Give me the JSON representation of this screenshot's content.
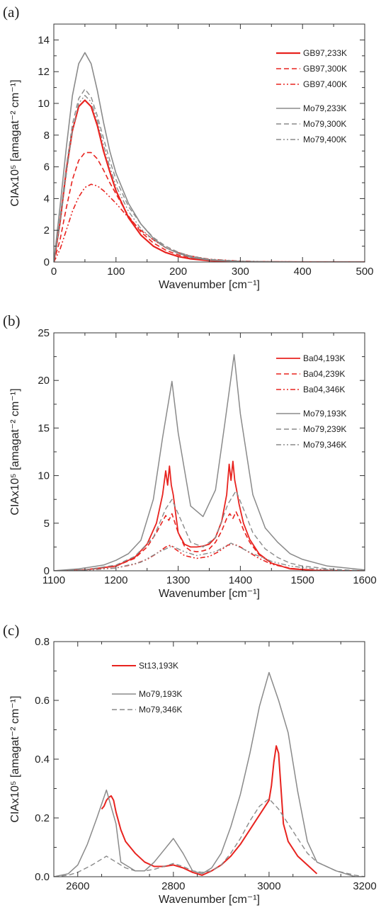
{
  "chart_data": [
    {
      "type": "line",
      "panel_label": "(a)",
      "xlabel": "Wavenumber [cm⁻¹]",
      "ylabel": "CIAx10⁵ [amagat⁻² cm⁻¹]",
      "xlim": [
        0,
        500
      ],
      "ylim": [
        0,
        15
      ],
      "xticks": [
        0,
        100,
        200,
        300,
        400,
        500
      ],
      "yticks": [
        0,
        2,
        4,
        6,
        8,
        10,
        12,
        14
      ],
      "legend_position": "top-right",
      "grid": false,
      "series": [
        {
          "name": "GB97,233K",
          "color": "#e8231f",
          "style": "solid",
          "width": 2.2,
          "x": [
            0,
            10,
            20,
            30,
            40,
            50,
            60,
            70,
            80,
            90,
            100,
            120,
            140,
            160,
            180,
            200,
            220,
            250,
            300,
            350,
            400,
            500
          ],
          "y": [
            0,
            2.5,
            5.8,
            8.3,
            9.8,
            10.2,
            9.8,
            8.6,
            7.0,
            5.7,
            4.5,
            2.8,
            1.7,
            1.0,
            0.6,
            0.35,
            0.2,
            0.08,
            0.02,
            0.01,
            0,
            0
          ]
        },
        {
          "name": "GB97,300K",
          "color": "#e8231f",
          "style": "dashed",
          "width": 1.6,
          "x": [
            0,
            10,
            20,
            30,
            40,
            50,
            60,
            70,
            80,
            90,
            100,
            120,
            140,
            160,
            180,
            200,
            220,
            250,
            300,
            350,
            400,
            500
          ],
          "y": [
            0,
            1.4,
            3.4,
            5.2,
            6.4,
            6.9,
            6.9,
            6.5,
            5.8,
            5.0,
            4.3,
            2.9,
            1.9,
            1.2,
            0.75,
            0.45,
            0.28,
            0.12,
            0.04,
            0.01,
            0,
            0
          ]
        },
        {
          "name": "GB97,400K",
          "color": "#e8231f",
          "style": "dashdotdot",
          "width": 1.6,
          "x": [
            0,
            10,
            20,
            30,
            40,
            50,
            60,
            70,
            80,
            90,
            100,
            120,
            140,
            160,
            180,
            200,
            220,
            250,
            300,
            350,
            400,
            500
          ],
          "y": [
            0,
            0.8,
            2.0,
            3.2,
            4.1,
            4.7,
            4.9,
            4.8,
            4.5,
            4.1,
            3.7,
            2.8,
            2.0,
            1.4,
            0.9,
            0.6,
            0.38,
            0.18,
            0.06,
            0.02,
            0.01,
            0
          ]
        },
        {
          "name": "Mo79,233K",
          "color": "#8a8a8a",
          "style": "solid",
          "width": 1.6,
          "x": [
            0,
            10,
            20,
            30,
            40,
            50,
            60,
            70,
            80,
            90,
            100,
            120,
            140,
            160,
            180,
            200,
            220,
            250,
            300,
            350,
            400,
            500
          ],
          "y": [
            0,
            3.5,
            7.2,
            10.5,
            12.5,
            13.2,
            12.5,
            10.8,
            8.8,
            7.0,
            5.6,
            3.7,
            2.4,
            1.5,
            0.9,
            0.55,
            0.3,
            0.12,
            0.03,
            0.01,
            0,
            0
          ]
        },
        {
          "name": "Mo79,300K",
          "color": "#8a8a8a",
          "style": "dashed",
          "width": 1.4,
          "x": [
            0,
            10,
            20,
            30,
            40,
            50,
            60,
            70,
            80,
            90,
            100,
            120,
            140,
            160,
            180,
            200,
            220,
            250,
            300,
            350,
            400,
            500
          ],
          "y": [
            0,
            2.8,
            6.0,
            8.7,
            10.3,
            10.9,
            10.4,
            9.2,
            7.8,
            6.4,
            5.2,
            3.5,
            2.4,
            1.55,
            1.0,
            0.62,
            0.38,
            0.17,
            0.05,
            0.02,
            0,
            0
          ]
        },
        {
          "name": "Mo79,400K",
          "color": "#8a8a8a",
          "style": "dashdotdot",
          "width": 1.4,
          "x": [
            0,
            10,
            20,
            30,
            40,
            50,
            60,
            70,
            80,
            90,
            100,
            120,
            140,
            160,
            180,
            200,
            220,
            250,
            300,
            350,
            400,
            500
          ],
          "y": [
            0,
            2.4,
            5.5,
            8.3,
            10.0,
            10.5,
            10.1,
            8.9,
            7.4,
            6.0,
            4.8,
            3.2,
            2.1,
            1.4,
            0.9,
            0.58,
            0.36,
            0.16,
            0.05,
            0.02,
            0,
            0
          ]
        }
      ]
    },
    {
      "type": "line",
      "panel_label": "(b)",
      "xlabel": "Wavenumber [cm⁻¹]",
      "ylabel": "CIAx10⁵ [amagat⁻² cm⁻¹]",
      "xlim": [
        1100,
        1600
      ],
      "ylim": [
        0,
        25
      ],
      "xticks": [
        1100,
        1200,
        1300,
        1400,
        1500,
        1600
      ],
      "yticks": [
        0,
        5,
        10,
        15,
        20,
        25
      ],
      "legend_position": "top-right",
      "grid": false,
      "series": [
        {
          "name": "Ba04,193K",
          "color": "#e8231f",
          "style": "solid",
          "width": 1.8,
          "x": [
            1100,
            1150,
            1200,
            1230,
            1250,
            1265,
            1275,
            1280,
            1283,
            1286,
            1289,
            1292,
            1296,
            1300,
            1310,
            1320,
            1330,
            1340,
            1350,
            1360,
            1370,
            1378,
            1382,
            1385,
            1388,
            1391,
            1394,
            1398,
            1405,
            1415,
            1430,
            1450,
            1480,
            1520,
            1560,
            1600
          ],
          "y": [
            0,
            0.1,
            0.5,
            1.4,
            2.8,
            5.0,
            8.0,
            10.5,
            9.0,
            11.0,
            9.0,
            8.0,
            6.0,
            4.0,
            2.8,
            2.5,
            2.5,
            2.6,
            2.8,
            3.5,
            5.2,
            8.0,
            11.2,
            9.5,
            11.5,
            9.5,
            8.5,
            7.0,
            5.0,
            3.3,
            1.8,
            0.8,
            0.2,
            0.05,
            0,
            0
          ]
        },
        {
          "name": "Ba04,239K",
          "color": "#e8231f",
          "style": "dashed",
          "width": 1.6,
          "x": [
            1100,
            1150,
            1200,
            1230,
            1250,
            1265,
            1275,
            1280,
            1285,
            1290,
            1295,
            1300,
            1310,
            1320,
            1330,
            1340,
            1350,
            1360,
            1370,
            1378,
            1383,
            1388,
            1393,
            1398,
            1405,
            1415,
            1430,
            1450,
            1480,
            1520,
            1560,
            1600
          ],
          "y": [
            0,
            0.1,
            0.5,
            1.3,
            2.5,
            4.0,
            5.2,
            5.8,
            5.3,
            6.0,
            5.0,
            4.0,
            2.6,
            2.1,
            2.0,
            2.1,
            2.3,
            3.0,
            4.2,
            5.5,
            6.0,
            5.5,
            6.2,
            5.5,
            4.3,
            3.0,
            1.7,
            0.8,
            0.25,
            0.05,
            0,
            0
          ]
        },
        {
          "name": "Ba04,346K",
          "color": "#e8231f",
          "style": "dashdotdot",
          "width": 1.6,
          "x": [
            1100,
            1150,
            1200,
            1230,
            1250,
            1265,
            1280,
            1288,
            1295,
            1310,
            1330,
            1350,
            1365,
            1380,
            1390,
            1400,
            1415,
            1430,
            1450,
            1480,
            1520,
            1600
          ],
          "y": [
            0,
            0.05,
            0.3,
            0.7,
            1.2,
            1.8,
            2.5,
            2.7,
            2.3,
            1.6,
            1.3,
            1.5,
            2.0,
            2.7,
            2.8,
            2.5,
            1.9,
            1.3,
            0.7,
            0.25,
            0.05,
            0
          ]
        },
        {
          "name": "Mo79,193K",
          "color": "#8a8a8a",
          "style": "solid",
          "width": 1.5,
          "x": [
            1100,
            1140,
            1180,
            1200,
            1220,
            1240,
            1260,
            1275,
            1290,
            1300,
            1320,
            1340,
            1360,
            1375,
            1390,
            1400,
            1420,
            1440,
            1460,
            1480,
            1500,
            1540,
            1600
          ],
          "y": [
            0,
            0.2,
            0.6,
            1.1,
            1.8,
            3.2,
            7.5,
            14.0,
            19.9,
            14.5,
            6.8,
            5.7,
            8.5,
            15.5,
            22.7,
            16.5,
            8.0,
            4.5,
            3.0,
            1.8,
            1.2,
            0.5,
            0.1
          ]
        },
        {
          "name": "Mo79,239K",
          "color": "#8a8a8a",
          "style": "dashed",
          "width": 1.4,
          "x": [
            1100,
            1150,
            1200,
            1230,
            1260,
            1280,
            1290,
            1300,
            1320,
            1340,
            1360,
            1380,
            1393,
            1405,
            1420,
            1440,
            1460,
            1480,
            1500,
            1550,
            1600
          ],
          "y": [
            0,
            0.1,
            0.6,
            1.5,
            3.5,
            6.5,
            7.5,
            6.0,
            3.0,
            2.5,
            3.5,
            7.0,
            8.4,
            6.5,
            4.0,
            2.3,
            1.4,
            0.8,
            0.5,
            0.15,
            0
          ]
        },
        {
          "name": "Mo79,346K",
          "color": "#8a8a8a",
          "style": "dashdotdot",
          "width": 1.4,
          "x": [
            1100,
            1150,
            1200,
            1240,
            1270,
            1290,
            1310,
            1330,
            1360,
            1385,
            1395,
            1420,
            1450,
            1480,
            1520,
            1560,
            1600
          ],
          "y": [
            0,
            0.05,
            0.3,
            0.9,
            2.0,
            2.6,
            2.0,
            1.6,
            2.0,
            2.9,
            2.6,
            1.8,
            1.0,
            0.5,
            0.2,
            0.05,
            0
          ]
        }
      ]
    },
    {
      "type": "line",
      "panel_label": "(c)",
      "xlabel": "Wavenumber [cm⁻¹]",
      "ylabel": "CIAx10⁵ [amagat⁻² cm⁻¹]",
      "xlim": [
        2550,
        3200
      ],
      "ylim": [
        0,
        0.8
      ],
      "xticks": [
        2600,
        2800,
        3000,
        3200
      ],
      "yticks": [
        0.0,
        0.2,
        0.4,
        0.6,
        0.8
      ],
      "legend_position": "top-left",
      "grid": false,
      "series": [
        {
          "name": "St13,193K",
          "color": "#e8231f",
          "style": "solid",
          "width": 2.0,
          "x": [
            2650,
            2655,
            2660,
            2665,
            2670,
            2675,
            2680,
            2690,
            2700,
            2720,
            2740,
            2760,
            2780,
            2800,
            2820,
            2840,
            2860,
            2880,
            2900,
            2920,
            2940,
            2960,
            2980,
            3000,
            3005,
            3010,
            3015,
            3020,
            3025,
            3030,
            3040,
            3060,
            3080,
            3100
          ],
          "y": [
            0.23,
            0.24,
            0.26,
            0.27,
            0.275,
            0.26,
            0.22,
            0.16,
            0.12,
            0.08,
            0.05,
            0.035,
            0.035,
            0.04,
            0.03,
            0.015,
            0.005,
            0.02,
            0.04,
            0.07,
            0.11,
            0.16,
            0.21,
            0.26,
            0.31,
            0.39,
            0.445,
            0.42,
            0.3,
            0.18,
            0.12,
            0.07,
            0.04,
            0.01
          ]
        },
        {
          "name": "Mo79,193K",
          "color": "#8a8a8a",
          "style": "solid",
          "width": 1.5,
          "x": [
            2550,
            2580,
            2600,
            2620,
            2640,
            2660,
            2680,
            2690,
            2700,
            2720,
            2740,
            2760,
            2780,
            2800,
            2820,
            2840,
            2860,
            2880,
            2900,
            2920,
            2940,
            2960,
            2980,
            3000,
            3020,
            3040,
            3060,
            3080,
            3100,
            3140,
            3180,
            3200
          ],
          "y": [
            0.0,
            0.01,
            0.04,
            0.11,
            0.2,
            0.295,
            0.18,
            0.05,
            0.04,
            0.02,
            0.02,
            0.05,
            0.09,
            0.13,
            0.08,
            0.02,
            0.01,
            0.03,
            0.08,
            0.17,
            0.28,
            0.42,
            0.58,
            0.695,
            0.6,
            0.49,
            0.29,
            0.12,
            0.05,
            0.02,
            0.0,
            0.0
          ]
        },
        {
          "name": "Mo79,346K",
          "color": "#8a8a8a",
          "style": "dashed",
          "width": 1.4,
          "x": [
            2550,
            2580,
            2600,
            2630,
            2660,
            2680,
            2700,
            2720,
            2740,
            2760,
            2780,
            2800,
            2820,
            2840,
            2860,
            2880,
            2900,
            2920,
            2940,
            2960,
            2980,
            3000,
            3020,
            3040,
            3060,
            3080,
            3100,
            3140,
            3180,
            3200
          ],
          "y": [
            0.0,
            0.005,
            0.015,
            0.04,
            0.07,
            0.05,
            0.03,
            0.02,
            0.02,
            0.025,
            0.035,
            0.045,
            0.035,
            0.02,
            0.015,
            0.02,
            0.04,
            0.08,
            0.13,
            0.19,
            0.24,
            0.265,
            0.23,
            0.18,
            0.13,
            0.08,
            0.05,
            0.02,
            0.005,
            0.0
          ]
        }
      ]
    }
  ]
}
